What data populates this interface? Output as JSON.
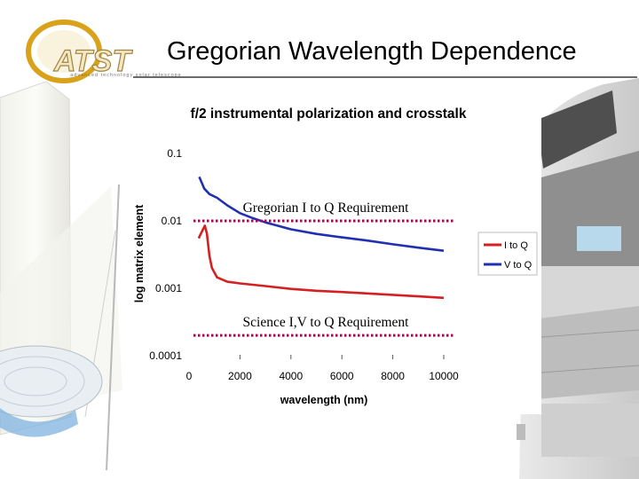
{
  "slide": {
    "title": "Gregorian Wavelength Dependence",
    "logo_text": "ATST",
    "logo_tagline": "advanced technology solar telescope"
  },
  "colors": {
    "i_to_q": "#d42020",
    "v_to_q": "#2030b0",
    "requirement": "#b00050",
    "logo_gold": "#d9a21b"
  },
  "chart_data": {
    "type": "line",
    "title": "f/2 instrumental polarization and crosstalk",
    "xlabel": "wavelength (nm)",
    "ylabel": "log matrix element",
    "y_scale": "log",
    "xlim": [
      0,
      10000
    ],
    "ylim": [
      0.0001,
      0.1
    ],
    "x_ticks": [
      "0",
      "2000",
      "4000",
      "6000",
      "8000",
      "10000"
    ],
    "y_ticks": [
      "0.1",
      "0.01",
      "0.001",
      "0.0001"
    ],
    "legend_position": "right",
    "series": [
      {
        "name": "I to Q",
        "color": "#d42020",
        "points": [
          [
            380,
            0.0055
          ],
          [
            450,
            0.0063
          ],
          [
            550,
            0.0075
          ],
          [
            620,
            0.0085
          ],
          [
            700,
            0.0065
          ],
          [
            800,
            0.003
          ],
          [
            900,
            0.002
          ],
          [
            1100,
            0.00145
          ],
          [
            1500,
            0.00125
          ],
          [
            2000,
            0.00118
          ],
          [
            3000,
            0.00108
          ],
          [
            4000,
            0.00098
          ],
          [
            5000,
            0.00092
          ],
          [
            6000,
            0.00088
          ],
          [
            7000,
            0.00084
          ],
          [
            8000,
            0.0008
          ],
          [
            9000,
            0.00076
          ],
          [
            10000,
            0.00072
          ]
        ]
      },
      {
        "name": "V to Q",
        "color": "#2030b0",
        "points": [
          [
            400,
            0.045
          ],
          [
            600,
            0.03
          ],
          [
            800,
            0.025
          ],
          [
            1100,
            0.022
          ],
          [
            1500,
            0.017
          ],
          [
            2000,
            0.013
          ],
          [
            2500,
            0.011
          ],
          [
            3000,
            0.0095
          ],
          [
            4000,
            0.0075
          ],
          [
            5000,
            0.0064
          ],
          [
            6000,
            0.0057
          ],
          [
            7000,
            0.0051
          ],
          [
            8000,
            0.0045
          ],
          [
            9000,
            0.004
          ],
          [
            10000,
            0.0036
          ]
        ]
      }
    ],
    "annotations": [
      {
        "text": "Gregorian I to Q Requirement",
        "y": 0.01
      },
      {
        "text": "Science I,V to Q Requirement",
        "y": 0.0002
      }
    ]
  }
}
